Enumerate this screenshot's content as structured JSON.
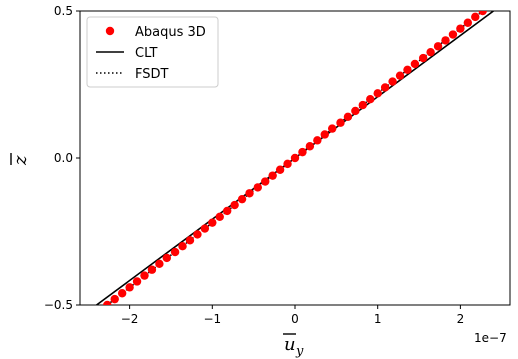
{
  "chart_data": {
    "type": "line",
    "xlabel": "u_y (overbar)",
    "ylabel": "z (overbar)",
    "x_offset_label": "1e−7",
    "xlim": [
      -2.6,
      2.6
    ],
    "ylim": [
      -0.5,
      0.5
    ],
    "x_ticks": [
      -2,
      -1,
      0,
      1,
      2
    ],
    "x_tick_labels": [
      "−2",
      "−1",
      "0",
      "1",
      "2"
    ],
    "y_ticks": [
      -0.5,
      0.0,
      0.5
    ],
    "y_tick_labels": [
      "−0.5",
      "0.0",
      "0.5"
    ],
    "grid": false,
    "legend_placement": "top-left",
    "colors": {
      "abaqus": "#ff0000",
      "clt": "#000000",
      "fsdt": "#000000"
    },
    "series": [
      {
        "name": "Abaqus 3D",
        "style": "markers",
        "x": [
          -2.27,
          -2.18,
          -2.09,
          -2.0,
          -1.91,
          -1.82,
          -1.73,
          -1.64,
          -1.55,
          -1.45,
          -1.36,
          -1.27,
          -1.18,
          -1.09,
          -1.0,
          -0.91,
          -0.82,
          -0.73,
          -0.64,
          -0.55,
          -0.45,
          -0.36,
          -0.27,
          -0.18,
          -0.09,
          0.0,
          0.09,
          0.18,
          0.27,
          0.36,
          0.45,
          0.55,
          0.64,
          0.73,
          0.82,
          0.91,
          1.0,
          1.09,
          1.18,
          1.27,
          1.36,
          1.45,
          1.55,
          1.64,
          1.73,
          1.82,
          1.91,
          2.0,
          2.09,
          2.18,
          2.27
        ],
        "y": [
          -0.5,
          -0.48,
          -0.46,
          -0.44,
          -0.42,
          -0.4,
          -0.38,
          -0.36,
          -0.34,
          -0.32,
          -0.3,
          -0.28,
          -0.26,
          -0.24,
          -0.22,
          -0.2,
          -0.18,
          -0.16,
          -0.14,
          -0.12,
          -0.1,
          -0.08,
          -0.06,
          -0.04,
          -0.02,
          0.0,
          0.02,
          0.04,
          0.06,
          0.08,
          0.1,
          0.12,
          0.14,
          0.16,
          0.18,
          0.2,
          0.22,
          0.24,
          0.26,
          0.28,
          0.3,
          0.32,
          0.34,
          0.36,
          0.38,
          0.4,
          0.42,
          0.44,
          0.46,
          0.48,
          0.5
        ]
      },
      {
        "name": "CLT",
        "style": "solid",
        "x": [
          -2.4,
          2.4
        ],
        "y": [
          -0.5,
          0.5
        ]
      },
      {
        "name": "FSDT",
        "style": "dotted",
        "x": [
          -2.27,
          2.27
        ],
        "y": [
          -0.5,
          0.5
        ]
      }
    ]
  }
}
